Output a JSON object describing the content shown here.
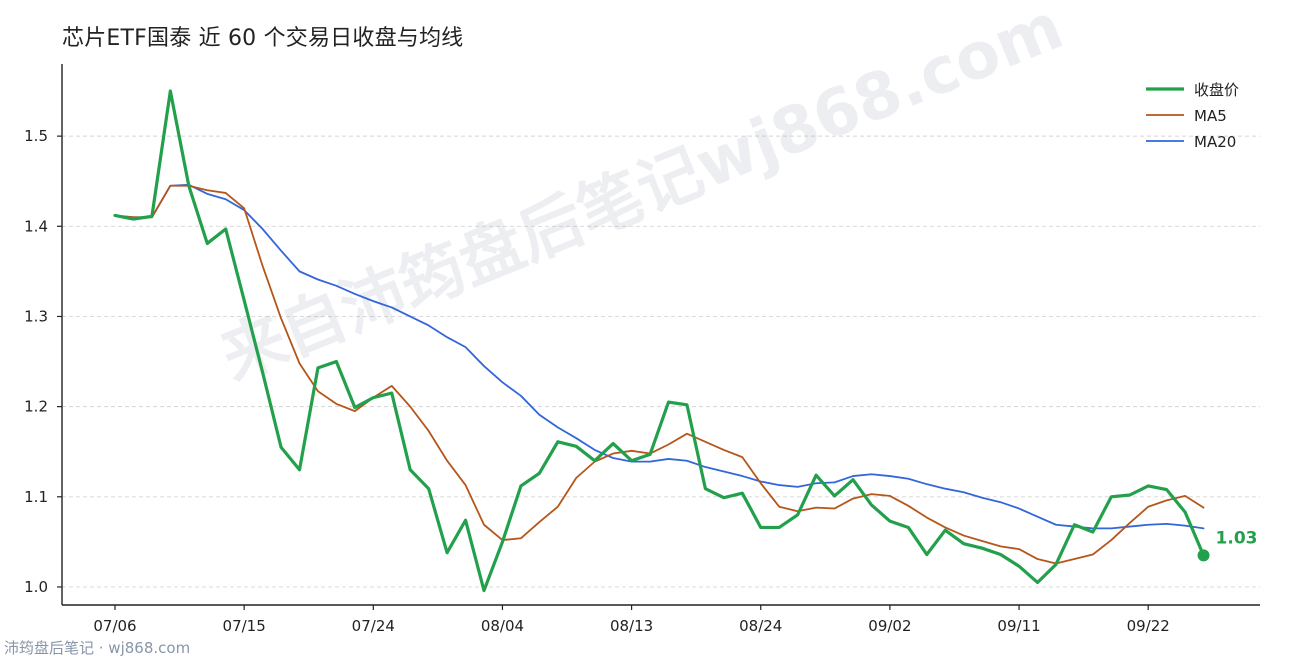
{
  "chart_data": {
    "type": "line",
    "title": "芯片ETF国泰 近 60 个交易日收盘与均线",
    "xlabel": "",
    "ylabel": "",
    "x_tick_labels": [
      "07/06",
      "07/15",
      "07/24",
      "08/04",
      "08/13",
      "08/24",
      "09/02",
      "09/11",
      "09/22"
    ],
    "x_tick_index": [
      0,
      7,
      14,
      21,
      28,
      35,
      42,
      49,
      56
    ],
    "ylim": [
      0.98,
      1.58
    ],
    "y_ticks": [
      1.0,
      1.1,
      1.2,
      1.3,
      1.4,
      1.5
    ],
    "y_tick_labels": [
      "1.0",
      "1.1",
      "1.2",
      "1.3",
      "1.4",
      "1.5"
    ],
    "grid": "horizontal dashed",
    "legend_position": "top-right",
    "series": [
      {
        "name": "收盘价",
        "color": "#22a04b",
        "values": [
          1.412,
          1.408,
          1.411,
          1.55,
          1.445,
          1.381,
          1.397,
          1.318,
          1.238,
          1.155,
          1.13,
          1.243,
          1.25,
          1.199,
          1.21,
          1.215,
          1.13,
          1.109,
          1.038,
          1.074,
          0.996,
          1.05,
          1.112,
          1.126,
          1.161,
          1.156,
          1.14,
          1.159,
          1.14,
          1.147,
          1.205,
          1.202,
          1.109,
          1.099,
          1.104,
          1.066,
          1.066,
          1.08,
          1.124,
          1.101,
          1.119,
          1.091,
          1.073,
          1.066,
          1.036,
          1.063,
          1.048,
          1.043,
          1.036,
          1.023,
          1.005,
          1.025,
          1.069,
          1.061,
          1.1,
          1.102,
          1.112,
          1.108,
          1.083,
          1.035
        ]
      },
      {
        "name": "MA5",
        "color": "#b5561a",
        "values": [
          1.412,
          1.41,
          1.41,
          1.445,
          1.445,
          1.44,
          1.437,
          1.42,
          1.356,
          1.298,
          1.248,
          1.217,
          1.203,
          1.195,
          1.21,
          1.223,
          1.2,
          1.173,
          1.14,
          1.113,
          1.069,
          1.052,
          1.054,
          1.072,
          1.089,
          1.121,
          1.139,
          1.148,
          1.151,
          1.148,
          1.158,
          1.17,
          1.161,
          1.152,
          1.144,
          1.115,
          1.089,
          1.084,
          1.088,
          1.087,
          1.098,
          1.103,
          1.101,
          1.09,
          1.077,
          1.066,
          1.057,
          1.051,
          1.045,
          1.042,
          1.031,
          1.026,
          1.031,
          1.036,
          1.052,
          1.071,
          1.089,
          1.096,
          1.101,
          1.088
        ]
      },
      {
        "name": "MA20",
        "color": "#3366d9",
        "values": [
          1.412,
          1.41,
          1.41,
          1.445,
          1.446,
          1.436,
          1.43,
          1.418,
          1.397,
          1.373,
          1.35,
          1.341,
          1.334,
          1.325,
          1.317,
          1.31,
          1.3,
          1.29,
          1.277,
          1.266,
          1.245,
          1.227,
          1.212,
          1.191,
          1.177,
          1.165,
          1.152,
          1.143,
          1.139,
          1.139,
          1.142,
          1.14,
          1.133,
          1.128,
          1.123,
          1.117,
          1.113,
          1.111,
          1.115,
          1.116,
          1.123,
          1.125,
          1.123,
          1.12,
          1.114,
          1.109,
          1.105,
          1.099,
          1.094,
          1.087,
          1.078,
          1.069,
          1.067,
          1.065,
          1.065,
          1.067,
          1.069,
          1.07,
          1.068,
          1.065
        ]
      }
    ],
    "annotation": {
      "label": "1.03",
      "series": "收盘价",
      "index": 59,
      "color": "#22a04b"
    }
  },
  "watermark": "来自沛筠盘后笔记wj868.com",
  "footer": {
    "source": "沛筠盘后笔记 · wj868.com"
  }
}
